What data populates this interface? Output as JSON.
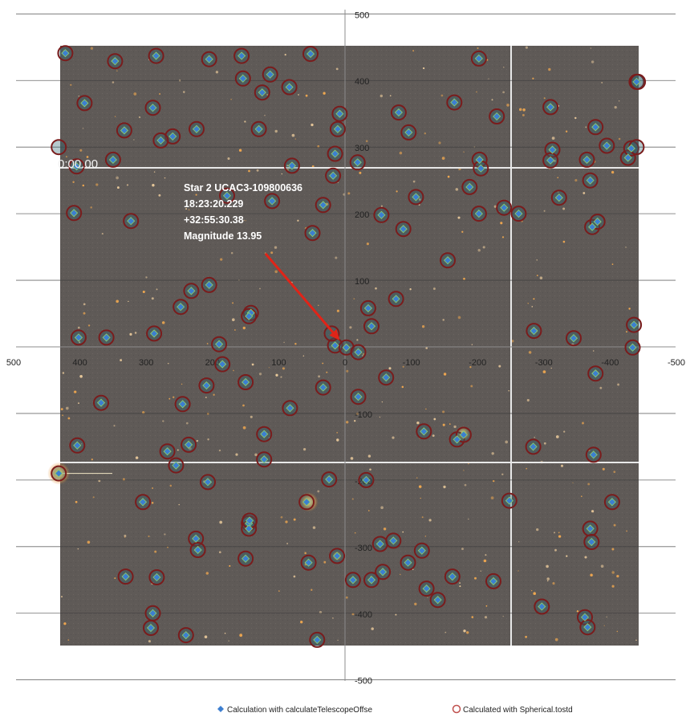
{
  "chart_data": {
    "type": "scatter",
    "xlim": [
      500,
      -500
    ],
    "ylim": [
      -500,
      500
    ],
    "x_ticks": [
      500,
      400,
      300,
      200,
      100,
      0,
      -100,
      -200,
      -300,
      -400,
      -500
    ],
    "y_ticks": [
      500,
      400,
      300,
      200,
      100,
      0,
      -100,
      -200,
      -300,
      -400,
      -500
    ],
    "x_tick_labels": [
      "500",
      "400",
      "300",
      "200",
      "100",
      "0",
      "-100",
      "-200",
      "-300",
      "-400",
      "-500"
    ],
    "y_tick_labels": [
      "500",
      "400",
      "300",
      "200",
      "100",
      "0",
      "-100",
      "-200",
      "-300",
      "-400",
      "-500"
    ],
    "grid": "horizontal",
    "background": "star field photograph",
    "legend_position": "bottom",
    "series": [
      {
        "name": "Calculation with calculateTelescopeOffse",
        "marker": "diamond",
        "color": "#3d7fd0",
        "points": [
          [
            422,
            441
          ],
          [
            347,
            429
          ],
          [
            285,
            437
          ],
          [
            156,
            437
          ],
          [
            52,
            440
          ],
          [
            205,
            432
          ],
          [
            154,
            403
          ],
          [
            113,
            409
          ],
          [
            84,
            390
          ],
          [
            125,
            382
          ],
          [
            393,
            366
          ],
          [
            290,
            359
          ],
          [
            130,
            327
          ],
          [
            333,
            325
          ],
          [
            224,
            327
          ],
          [
            260,
            316
          ],
          [
            278,
            310
          ],
          [
            -202,
            433
          ],
          [
            -81,
            352
          ],
          [
            -165,
            367
          ],
          [
            -229,
            346
          ],
          [
            -310,
            360
          ],
          [
            -313,
            296
          ],
          [
            -378,
            330
          ],
          [
            -395,
            302
          ],
          [
            -365,
            281
          ],
          [
            -310,
            280
          ],
          [
            -427,
            284
          ],
          [
            -432,
            298
          ],
          [
            -440,
            398
          ],
          [
            8,
            350
          ],
          [
            11,
            327
          ],
          [
            15,
            290
          ],
          [
            -19,
            277
          ],
          [
            -203,
            281
          ],
          [
            350,
            281
          ],
          [
            405,
            271
          ],
          [
            80,
            272
          ],
          [
            18,
            257
          ],
          [
            -96,
            322
          ],
          [
            -107,
            225
          ],
          [
            -188,
            240
          ],
          [
            -205,
            268
          ],
          [
            -202,
            200
          ],
          [
            -240,
            209
          ],
          [
            -262,
            200
          ],
          [
            -323,
            224
          ],
          [
            -370,
            250
          ],
          [
            -373,
            180
          ],
          [
            -381,
            188
          ],
          [
            409,
            201
          ],
          [
            323,
            189
          ],
          [
            110,
            219
          ],
          [
            178,
            227
          ],
          [
            33,
            213
          ],
          [
            -55,
            198
          ],
          [
            -88,
            177
          ],
          [
            49,
            171
          ],
          [
            -155,
            130
          ],
          [
            -35,
            58
          ],
          [
            -40,
            31
          ],
          [
            -77,
            72
          ],
          [
            -285,
            24
          ],
          [
            -345,
            13
          ],
          [
            -436,
            33
          ],
          [
            -434,
            -1
          ],
          [
            205,
            93
          ],
          [
            232,
            84
          ],
          [
            248,
            60
          ],
          [
            142,
            51
          ],
          [
            145,
            46
          ],
          [
            288,
            20
          ],
          [
            402,
            14
          ],
          [
            360,
            14
          ],
          [
            190,
            4
          ],
          [
            15,
            2
          ],
          [
            -2,
            -1
          ],
          [
            -20,
            -8
          ],
          [
            185,
            -26
          ],
          [
            209,
            -58
          ],
          [
            150,
            -53
          ],
          [
            33,
            -61
          ],
          [
            -20,
            -75
          ],
          [
            -62,
            -46
          ],
          [
            368,
            -84
          ],
          [
            245,
            -86
          ],
          [
            83,
            -92
          ],
          [
            -378,
            -40
          ],
          [
            404,
            -148
          ],
          [
            268,
            -157
          ],
          [
            236,
            -147
          ],
          [
            255,
            -178
          ],
          [
            122,
            -131
          ],
          [
            122,
            -169
          ],
          [
            -119,
            -127
          ],
          [
            -169,
            -139
          ],
          [
            -179,
            -132
          ],
          [
            -284,
            -150
          ],
          [
            -375,
            -162
          ],
          [
            432,
            -190
          ],
          [
            207,
            -203
          ],
          [
            58,
            -233
          ],
          [
            24,
            -199
          ],
          [
            -32,
            -200
          ],
          [
            -248,
            -231
          ],
          [
            -403,
            -233
          ],
          [
            305,
            -233
          ],
          [
            225,
            -288
          ],
          [
            222,
            -305
          ],
          [
            145,
            -265
          ],
          [
            145,
            -273
          ],
          [
            144,
            -261
          ],
          [
            150,
            -318
          ],
          [
            55,
            -324
          ],
          [
            12,
            -314
          ],
          [
            -53,
            -296
          ],
          [
            -73,
            -291
          ],
          [
            -116,
            -306
          ],
          [
            -95,
            -324
          ],
          [
            -40,
            -350
          ],
          [
            -57,
            -338
          ],
          [
            -12,
            -350
          ],
          [
            -123,
            -363
          ],
          [
            -140,
            -380
          ],
          [
            -162,
            -345
          ],
          [
            -224,
            -352
          ],
          [
            -370,
            -273
          ],
          [
            -372,
            -293
          ],
          [
            -297,
            -390
          ],
          [
            -362,
            -406
          ],
          [
            -366,
            -421
          ],
          [
            331,
            -345
          ],
          [
            284,
            -346
          ],
          [
            290,
            -400
          ],
          [
            293,
            -422
          ],
          [
            240,
            -433
          ],
          [
            42,
            -440
          ]
        ]
      },
      {
        "name": "Calculated with Spherical.tostd",
        "marker": "open circle",
        "color": "#c0504d",
        "points": [
          [
            422,
            441
          ],
          [
            347,
            429
          ],
          [
            285,
            437
          ],
          [
            156,
            437
          ],
          [
            52,
            440
          ],
          [
            205,
            432
          ],
          [
            154,
            403
          ],
          [
            113,
            409
          ],
          [
            84,
            390
          ],
          [
            125,
            382
          ],
          [
            393,
            366
          ],
          [
            290,
            359
          ],
          [
            130,
            327
          ],
          [
            333,
            325
          ],
          [
            224,
            327
          ],
          [
            260,
            316
          ],
          [
            278,
            310
          ],
          [
            -202,
            433
          ],
          [
            -81,
            352
          ],
          [
            -165,
            367
          ],
          [
            -229,
            346
          ],
          [
            -310,
            360
          ],
          [
            -313,
            296
          ],
          [
            -378,
            330
          ],
          [
            -395,
            302
          ],
          [
            -365,
            281
          ],
          [
            -310,
            280
          ],
          [
            -427,
            284
          ],
          [
            -432,
            298
          ],
          [
            -440,
            398
          ],
          [
            8,
            350
          ],
          [
            11,
            327
          ],
          [
            15,
            290
          ],
          [
            -19,
            277
          ],
          [
            -203,
            281
          ],
          [
            350,
            281
          ],
          [
            405,
            271
          ],
          [
            80,
            272
          ],
          [
            18,
            257
          ],
          [
            -96,
            322
          ],
          [
            -107,
            225
          ],
          [
            -188,
            240
          ],
          [
            -205,
            268
          ],
          [
            -202,
            200
          ],
          [
            -240,
            209
          ],
          [
            -262,
            200
          ],
          [
            -323,
            224
          ],
          [
            -370,
            250
          ],
          [
            -373,
            180
          ],
          [
            -381,
            188
          ],
          [
            409,
            201
          ],
          [
            323,
            189
          ],
          [
            110,
            219
          ],
          [
            178,
            227
          ],
          [
            33,
            213
          ],
          [
            -55,
            198
          ],
          [
            -88,
            177
          ],
          [
            49,
            171
          ],
          [
            -155,
            130
          ],
          [
            -35,
            58
          ],
          [
            -40,
            31
          ],
          [
            -77,
            72
          ],
          [
            -285,
            24
          ],
          [
            -345,
            13
          ],
          [
            -436,
            33
          ],
          [
            -434,
            -1
          ],
          [
            205,
            93
          ],
          [
            232,
            84
          ],
          [
            248,
            60
          ],
          [
            142,
            51
          ],
          [
            145,
            46
          ],
          [
            288,
            20
          ],
          [
            402,
            14
          ],
          [
            360,
            14
          ],
          [
            190,
            4
          ],
          [
            15,
            2
          ],
          [
            -2,
            -1
          ],
          [
            -20,
            -8
          ],
          [
            185,
            -26
          ],
          [
            209,
            -58
          ],
          [
            150,
            -53
          ],
          [
            33,
            -61
          ],
          [
            -20,
            -75
          ],
          [
            -62,
            -46
          ],
          [
            368,
            -84
          ],
          [
            245,
            -86
          ],
          [
            83,
            -92
          ],
          [
            -378,
            -40
          ],
          [
            404,
            -148
          ],
          [
            268,
            -157
          ],
          [
            236,
            -147
          ],
          [
            255,
            -178
          ],
          [
            122,
            -131
          ],
          [
            122,
            -169
          ],
          [
            -119,
            -127
          ],
          [
            -169,
            -139
          ],
          [
            -179,
            -132
          ],
          [
            -284,
            -150
          ],
          [
            -375,
            -162
          ],
          [
            432,
            -190
          ],
          [
            207,
            -203
          ],
          [
            58,
            -233
          ],
          [
            24,
            -199
          ],
          [
            -32,
            -200
          ],
          [
            -248,
            -231
          ],
          [
            -403,
            -233
          ],
          [
            305,
            -233
          ],
          [
            225,
            -288
          ],
          [
            222,
            -305
          ],
          [
            145,
            -265
          ],
          [
            145,
            -273
          ],
          [
            144,
            -261
          ],
          [
            150,
            -318
          ],
          [
            55,
            -324
          ],
          [
            12,
            -314
          ],
          [
            -53,
            -296
          ],
          [
            -73,
            -291
          ],
          [
            -116,
            -306
          ],
          [
            -95,
            -324
          ],
          [
            -40,
            -350
          ],
          [
            -57,
            -338
          ],
          [
            -12,
            -350
          ],
          [
            -123,
            -363
          ],
          [
            -140,
            -380
          ],
          [
            -162,
            -345
          ],
          [
            -224,
            -352
          ],
          [
            -370,
            -273
          ],
          [
            -372,
            -293
          ],
          [
            -297,
            -390
          ],
          [
            -362,
            -406
          ],
          [
            -366,
            -421
          ],
          [
            331,
            -345
          ],
          [
            284,
            -346
          ],
          [
            290,
            -400
          ],
          [
            293,
            -422
          ],
          [
            240,
            -433
          ],
          [
            42,
            -440
          ],
          [
            20,
            20
          ],
          [
            432,
            300
          ],
          [
            -440,
            300
          ],
          [
            -442,
            398
          ]
        ]
      }
    ],
    "annotation": {
      "lines": [
        "Star 2 UCAC3-109800636",
        "18:23:20.229",
        "+32:55:30.38",
        "Magnitude 13.95"
      ],
      "arrow_color": "#e02418",
      "arrow_from": [
        120,
        140
      ],
      "arrow_to": [
        8,
        10
      ]
    },
    "overlay_label": "0:00.00"
  },
  "colors": {
    "photo_background": "#5f5a57",
    "grid": "#3a3a3a",
    "marker_fill": "#3d7fd0",
    "marker_ring": "#7a1c1c",
    "axis": "#8c8c8c"
  }
}
